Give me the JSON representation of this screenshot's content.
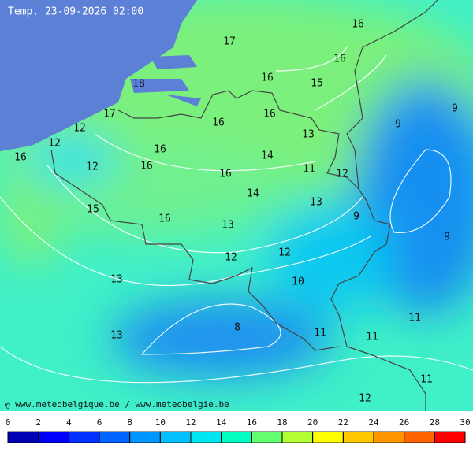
{
  "title": "Temp. 23-09-2026 02:00",
  "credit": "@ www.meteobelgique.be / www.meteobelgie.be",
  "contour_labels": [
    17,
    16,
    16,
    18,
    16,
    15,
    17,
    16,
    16,
    12,
    9,
    9,
    12,
    13,
    16,
    14,
    16,
    12,
    16,
    16,
    11,
    12,
    14,
    13,
    15,
    16,
    9,
    13,
    9,
    12,
    12,
    13,
    10,
    11,
    8,
    11,
    11,
    13,
    11,
    12
  ],
  "colorbar": {
    "ticks": [
      0,
      2,
      4,
      6,
      8,
      10,
      12,
      14,
      16,
      18,
      20,
      22,
      24,
      26,
      28,
      30
    ],
    "colors": [
      "#0000b4",
      "#0000ff",
      "#0030ff",
      "#0064ff",
      "#0096ff",
      "#00c0ff",
      "#00e6f0",
      "#00ffc0",
      "#64ff70",
      "#b4ff32",
      "#ffff00",
      "#ffc800",
      "#ff9600",
      "#ff6400",
      "#ff0000"
    ]
  }
}
